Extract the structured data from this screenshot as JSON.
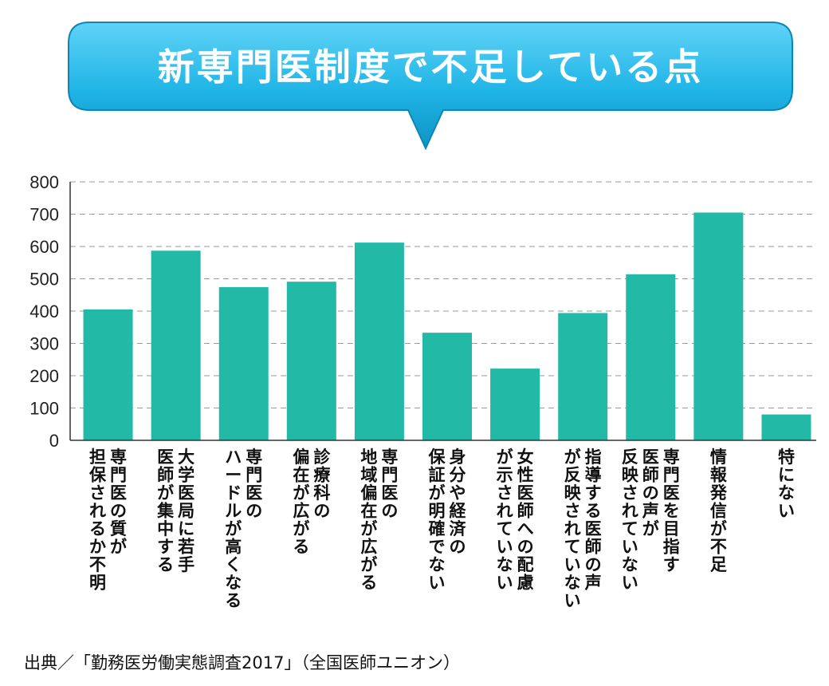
{
  "chart_data": {
    "type": "bar",
    "title": "新専門医制度で不足している点",
    "categories": [
      [
        "専門医の質が",
        "担保されるか不明"
      ],
      [
        "大学医局に若手",
        "医師が集中する"
      ],
      [
        "専門医の",
        "ハードルが高くなる"
      ],
      [
        "診療科の",
        "偏在が広がる"
      ],
      [
        "専門医の",
        "地域偏在が広がる"
      ],
      [
        "身分や経済の",
        "保証が明確でない"
      ],
      [
        "女性医師への配慮",
        "が示されていない"
      ],
      [
        "指導する医師の声",
        "が反映されていない"
      ],
      [
        "専門医を目指す",
        "医師の声が",
        "反映されていない"
      ],
      [
        "情報発信が不足"
      ],
      [
        "特にない"
      ]
    ],
    "values": [
      405,
      587,
      474,
      491,
      612,
      333,
      222,
      394,
      514,
      705,
      80
    ],
    "yticks": [
      0,
      100,
      200,
      300,
      400,
      500,
      600,
      700,
      800
    ],
    "ylim": [
      0,
      800
    ],
    "grid": true,
    "bar_color": "#22b9a6",
    "title_bg_color": "#1fb4e6",
    "source": "出典／「勤務医労働実態調査2017」（全国医師ユニオン）"
  }
}
